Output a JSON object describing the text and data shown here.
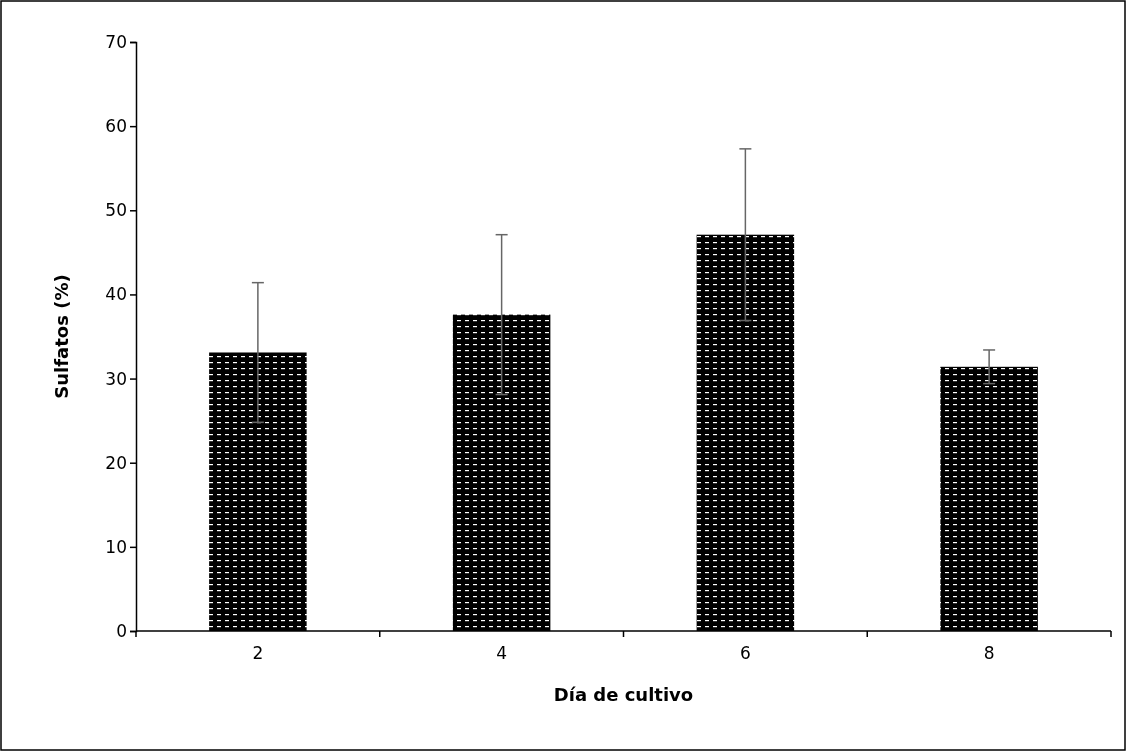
{
  "chart_data": {
    "type": "bar",
    "xlabel": "Día de cultivo",
    "ylabel": "Sulfatos (%)",
    "categories": [
      "2",
      "4",
      "6",
      "8"
    ],
    "values": [
      33.1,
      37.6,
      47.1,
      31.4
    ],
    "errors": [
      8.3,
      9.5,
      10.2,
      2.0
    ],
    "color": "#000000",
    "ylim": [
      0,
      70
    ],
    "yticks": [
      0,
      10,
      20,
      30,
      40,
      50,
      60,
      70
    ],
    "grid": false
  }
}
